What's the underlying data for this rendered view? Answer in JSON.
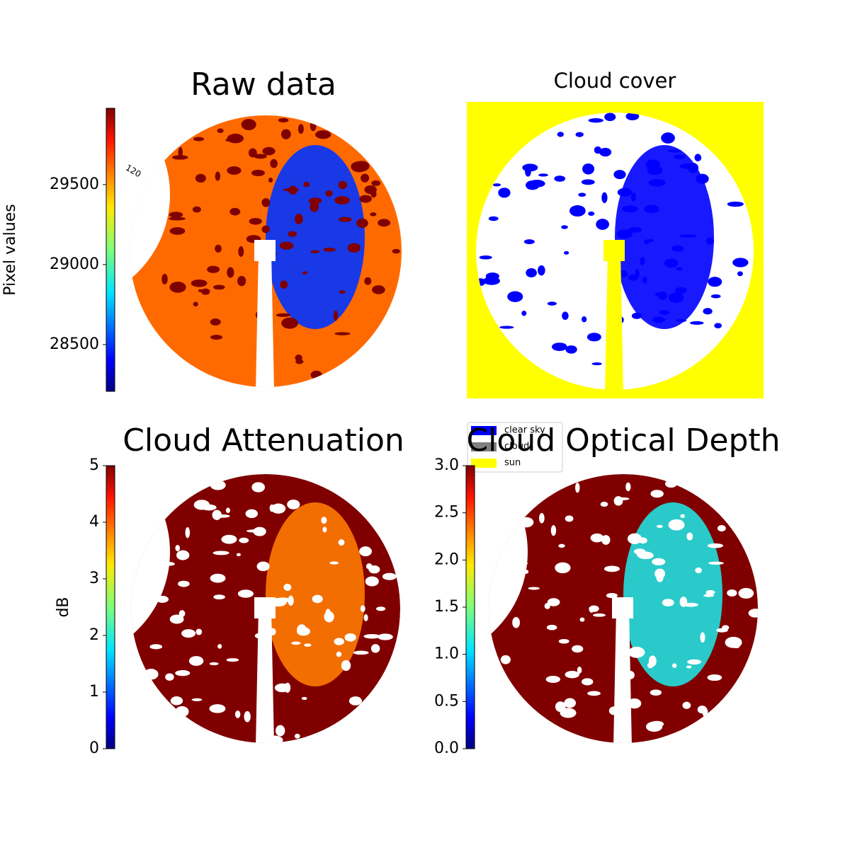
{
  "chart_data": [
    {
      "type": "image",
      "title": "Raw data",
      "colorbar_label": "Pixel values",
      "colormap": "jet",
      "clim": [
        28208,
        29977
      ],
      "cticks": [
        28500,
        29000,
        29500
      ],
      "annotations": [
        "120"
      ]
    },
    {
      "type": "image",
      "title": "Cloud cover",
      "legend": [
        {
          "name": "clear sky",
          "color": "#0000ff"
        },
        {
          "name": "cloud",
          "color": "#808080"
        },
        {
          "name": "sun",
          "color": "#ffff00"
        }
      ]
    },
    {
      "type": "image",
      "title": "Cloud Attenuation",
      "colorbar_label": "dB",
      "colormap": "jet",
      "clim": [
        0,
        5
      ],
      "cticks": [
        0,
        1,
        2,
        3,
        4,
        5
      ]
    },
    {
      "type": "image",
      "title": "Cloud Optical Depth",
      "colormap": "jet",
      "clim": [
        0,
        3
      ],
      "cticks": [
        {
          "value": 0,
          "label": "0.0"
        },
        {
          "value": 0.5,
          "label": "0.5"
        },
        {
          "value": 1,
          "label": "1.0"
        },
        {
          "value": 1.5,
          "label": "1.5"
        },
        {
          "value": 2,
          "label": "2.0"
        },
        {
          "value": 2.5,
          "label": "2.5"
        },
        {
          "value": 3,
          "label": "3.0"
        }
      ]
    }
  ]
}
